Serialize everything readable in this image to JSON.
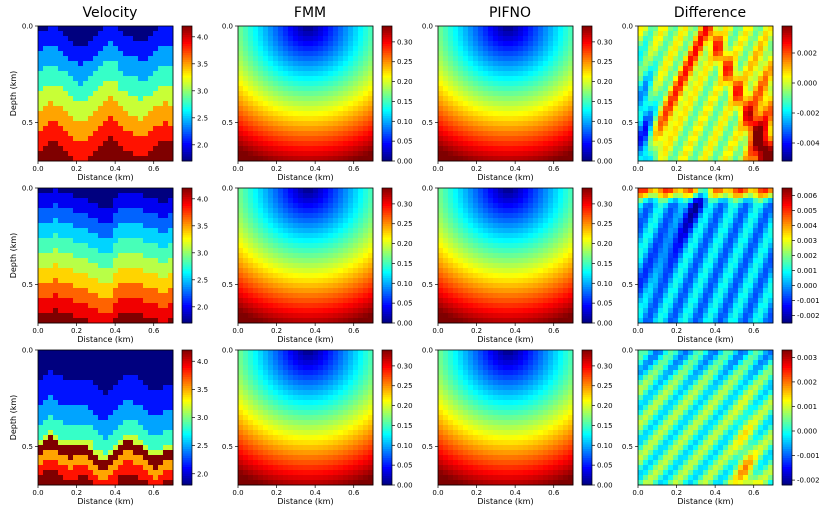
{
  "figure": {
    "column_titles": [
      "Velocity",
      "FMM",
      "PIFNO",
      "Difference"
    ],
    "xlabel": "Distance (km)",
    "ylabel": "Depth (km)",
    "x_ticks": [
      "0.0",
      "0.2",
      "0.4",
      "0.6"
    ],
    "y_ticks": [
      "0.0",
      "0.5"
    ]
  },
  "colors": {
    "jet": [
      "#00007f",
      "#0000ff",
      "#007fff",
      "#00ffff",
      "#7fff7f",
      "#ffff00",
      "#ff7f00",
      "#ff0000",
      "#7f0000"
    ]
  },
  "chart_data": [
    {
      "type": "heatmap",
      "title": "Velocity",
      "row": 1,
      "col": 1,
      "field": "velocity",
      "seed": 1,
      "xlim": [
        0,
        0.7
      ],
      "ylim": [
        0,
        0.7
      ],
      "clim": [
        1.7,
        4.2
      ],
      "colorbar_ticks": [
        "4.0",
        "3.5",
        "3.0",
        "2.5",
        "2.0"
      ],
      "colorbar_values": [
        4.0,
        3.5,
        3.0,
        2.5,
        2.0
      ]
    },
    {
      "type": "heatmap",
      "title": "FMM",
      "row": 1,
      "col": 2,
      "field": "traveltime",
      "xlim": [
        0,
        0.7
      ],
      "ylim": [
        0,
        0.7
      ],
      "clim": [
        0,
        0.34
      ],
      "colorbar_ticks": [
        "0.30",
        "0.25",
        "0.20",
        "0.15",
        "0.10",
        "0.05",
        "0.00"
      ],
      "colorbar_values": [
        0.3,
        0.25,
        0.2,
        0.15,
        0.1,
        0.05,
        0.0
      ]
    },
    {
      "type": "heatmap",
      "title": "PIFNO",
      "row": 1,
      "col": 3,
      "field": "traveltime",
      "xlim": [
        0,
        0.7
      ],
      "ylim": [
        0,
        0.7
      ],
      "clim": [
        0,
        0.34
      ],
      "colorbar_ticks": [
        "0.30",
        "0.25",
        "0.20",
        "0.15",
        "0.10",
        "0.05",
        "0.00"
      ],
      "colorbar_values": [
        0.3,
        0.25,
        0.2,
        0.15,
        0.1,
        0.05,
        0.0
      ]
    },
    {
      "type": "heatmap",
      "title": "Difference",
      "row": 1,
      "col": 4,
      "field": "difference",
      "seed": 1,
      "xlim": [
        0,
        0.7
      ],
      "ylim": [
        0,
        0.7
      ],
      "clim": [
        -0.0052,
        0.0038
      ],
      "colorbar_ticks": [
        "0.002",
        "0.000",
        "-0.002",
        "-0.004"
      ],
      "colorbar_values": [
        0.002,
        0.0,
        -0.002,
        -0.004
      ]
    },
    {
      "type": "heatmap",
      "row": 2,
      "col": 1,
      "field": "velocity",
      "seed": 2,
      "xlim": [
        0,
        0.7
      ],
      "ylim": [
        0,
        0.7
      ],
      "clim": [
        1.7,
        4.2
      ],
      "colorbar_ticks": [
        "4.0",
        "3.5",
        "3.0",
        "2.5",
        "2.0"
      ],
      "colorbar_values": [
        4.0,
        3.5,
        3.0,
        2.5,
        2.0
      ]
    },
    {
      "type": "heatmap",
      "row": 2,
      "col": 2,
      "field": "traveltime",
      "xlim": [
        0,
        0.7
      ],
      "ylim": [
        0,
        0.7
      ],
      "clim": [
        0,
        0.34
      ],
      "colorbar_ticks": [
        "0.30",
        "0.25",
        "0.20",
        "0.15",
        "0.10",
        "0.05",
        "0.00"
      ],
      "colorbar_values": [
        0.3,
        0.25,
        0.2,
        0.15,
        0.1,
        0.05,
        0.0
      ]
    },
    {
      "type": "heatmap",
      "row": 2,
      "col": 3,
      "field": "traveltime",
      "xlim": [
        0,
        0.7
      ],
      "ylim": [
        0,
        0.7
      ],
      "clim": [
        0,
        0.34
      ],
      "colorbar_ticks": [
        "0.30",
        "0.25",
        "0.20",
        "0.15",
        "0.10",
        "0.05",
        "0.00"
      ],
      "colorbar_values": [
        0.3,
        0.25,
        0.2,
        0.15,
        0.1,
        0.05,
        0.0
      ]
    },
    {
      "type": "heatmap",
      "row": 2,
      "col": 4,
      "field": "difference",
      "seed": 2,
      "xlim": [
        0,
        0.7
      ],
      "ylim": [
        0,
        0.7
      ],
      "clim": [
        -0.0025,
        0.0065
      ],
      "colorbar_ticks": [
        "0.006",
        "0.005",
        "0.004",
        "0.003",
        "0.002",
        "0.001",
        "0.000",
        "-0.001",
        "-0.002"
      ],
      "colorbar_values": [
        0.006,
        0.005,
        0.004,
        0.003,
        0.002,
        0.001,
        0.0,
        -0.001,
        -0.002
      ]
    },
    {
      "type": "heatmap",
      "row": 3,
      "col": 1,
      "field": "velocity",
      "seed": 3,
      "xlim": [
        0,
        0.7
      ],
      "ylim": [
        0,
        0.7
      ],
      "clim": [
        1.8,
        4.2
      ],
      "colorbar_ticks": [
        "4.0",
        "3.5",
        "3.0",
        "2.5",
        "2.0"
      ],
      "colorbar_values": [
        4.0,
        3.5,
        3.0,
        2.5,
        2.0
      ]
    },
    {
      "type": "heatmap",
      "row": 3,
      "col": 2,
      "field": "traveltime",
      "xlim": [
        0,
        0.7
      ],
      "ylim": [
        0,
        0.7
      ],
      "clim": [
        0,
        0.34
      ],
      "colorbar_ticks": [
        "0.30",
        "0.25",
        "0.20",
        "0.15",
        "0.10",
        "0.05",
        "0.00"
      ],
      "colorbar_values": [
        0.3,
        0.25,
        0.2,
        0.15,
        0.1,
        0.05,
        0.0
      ]
    },
    {
      "type": "heatmap",
      "row": 3,
      "col": 3,
      "field": "traveltime",
      "xlim": [
        0,
        0.7
      ],
      "ylim": [
        0,
        0.7
      ],
      "clim": [
        0,
        0.34
      ],
      "colorbar_ticks": [
        "0.30",
        "0.25",
        "0.20",
        "0.15",
        "0.10",
        "0.05",
        "0.00"
      ],
      "colorbar_values": [
        0.3,
        0.25,
        0.2,
        0.15,
        0.1,
        0.05,
        0.0
      ]
    },
    {
      "type": "heatmap",
      "row": 3,
      "col": 4,
      "field": "difference",
      "seed": 3,
      "xlim": [
        0,
        0.7
      ],
      "ylim": [
        0,
        0.7
      ],
      "clim": [
        -0.0022,
        0.0033
      ],
      "colorbar_ticks": [
        "0.003",
        "0.002",
        "0.001",
        "0.000",
        "-0.001",
        "-0.002"
      ],
      "colorbar_values": [
        0.003,
        0.002,
        0.001,
        0.0,
        -0.001,
        -0.002
      ]
    }
  ]
}
